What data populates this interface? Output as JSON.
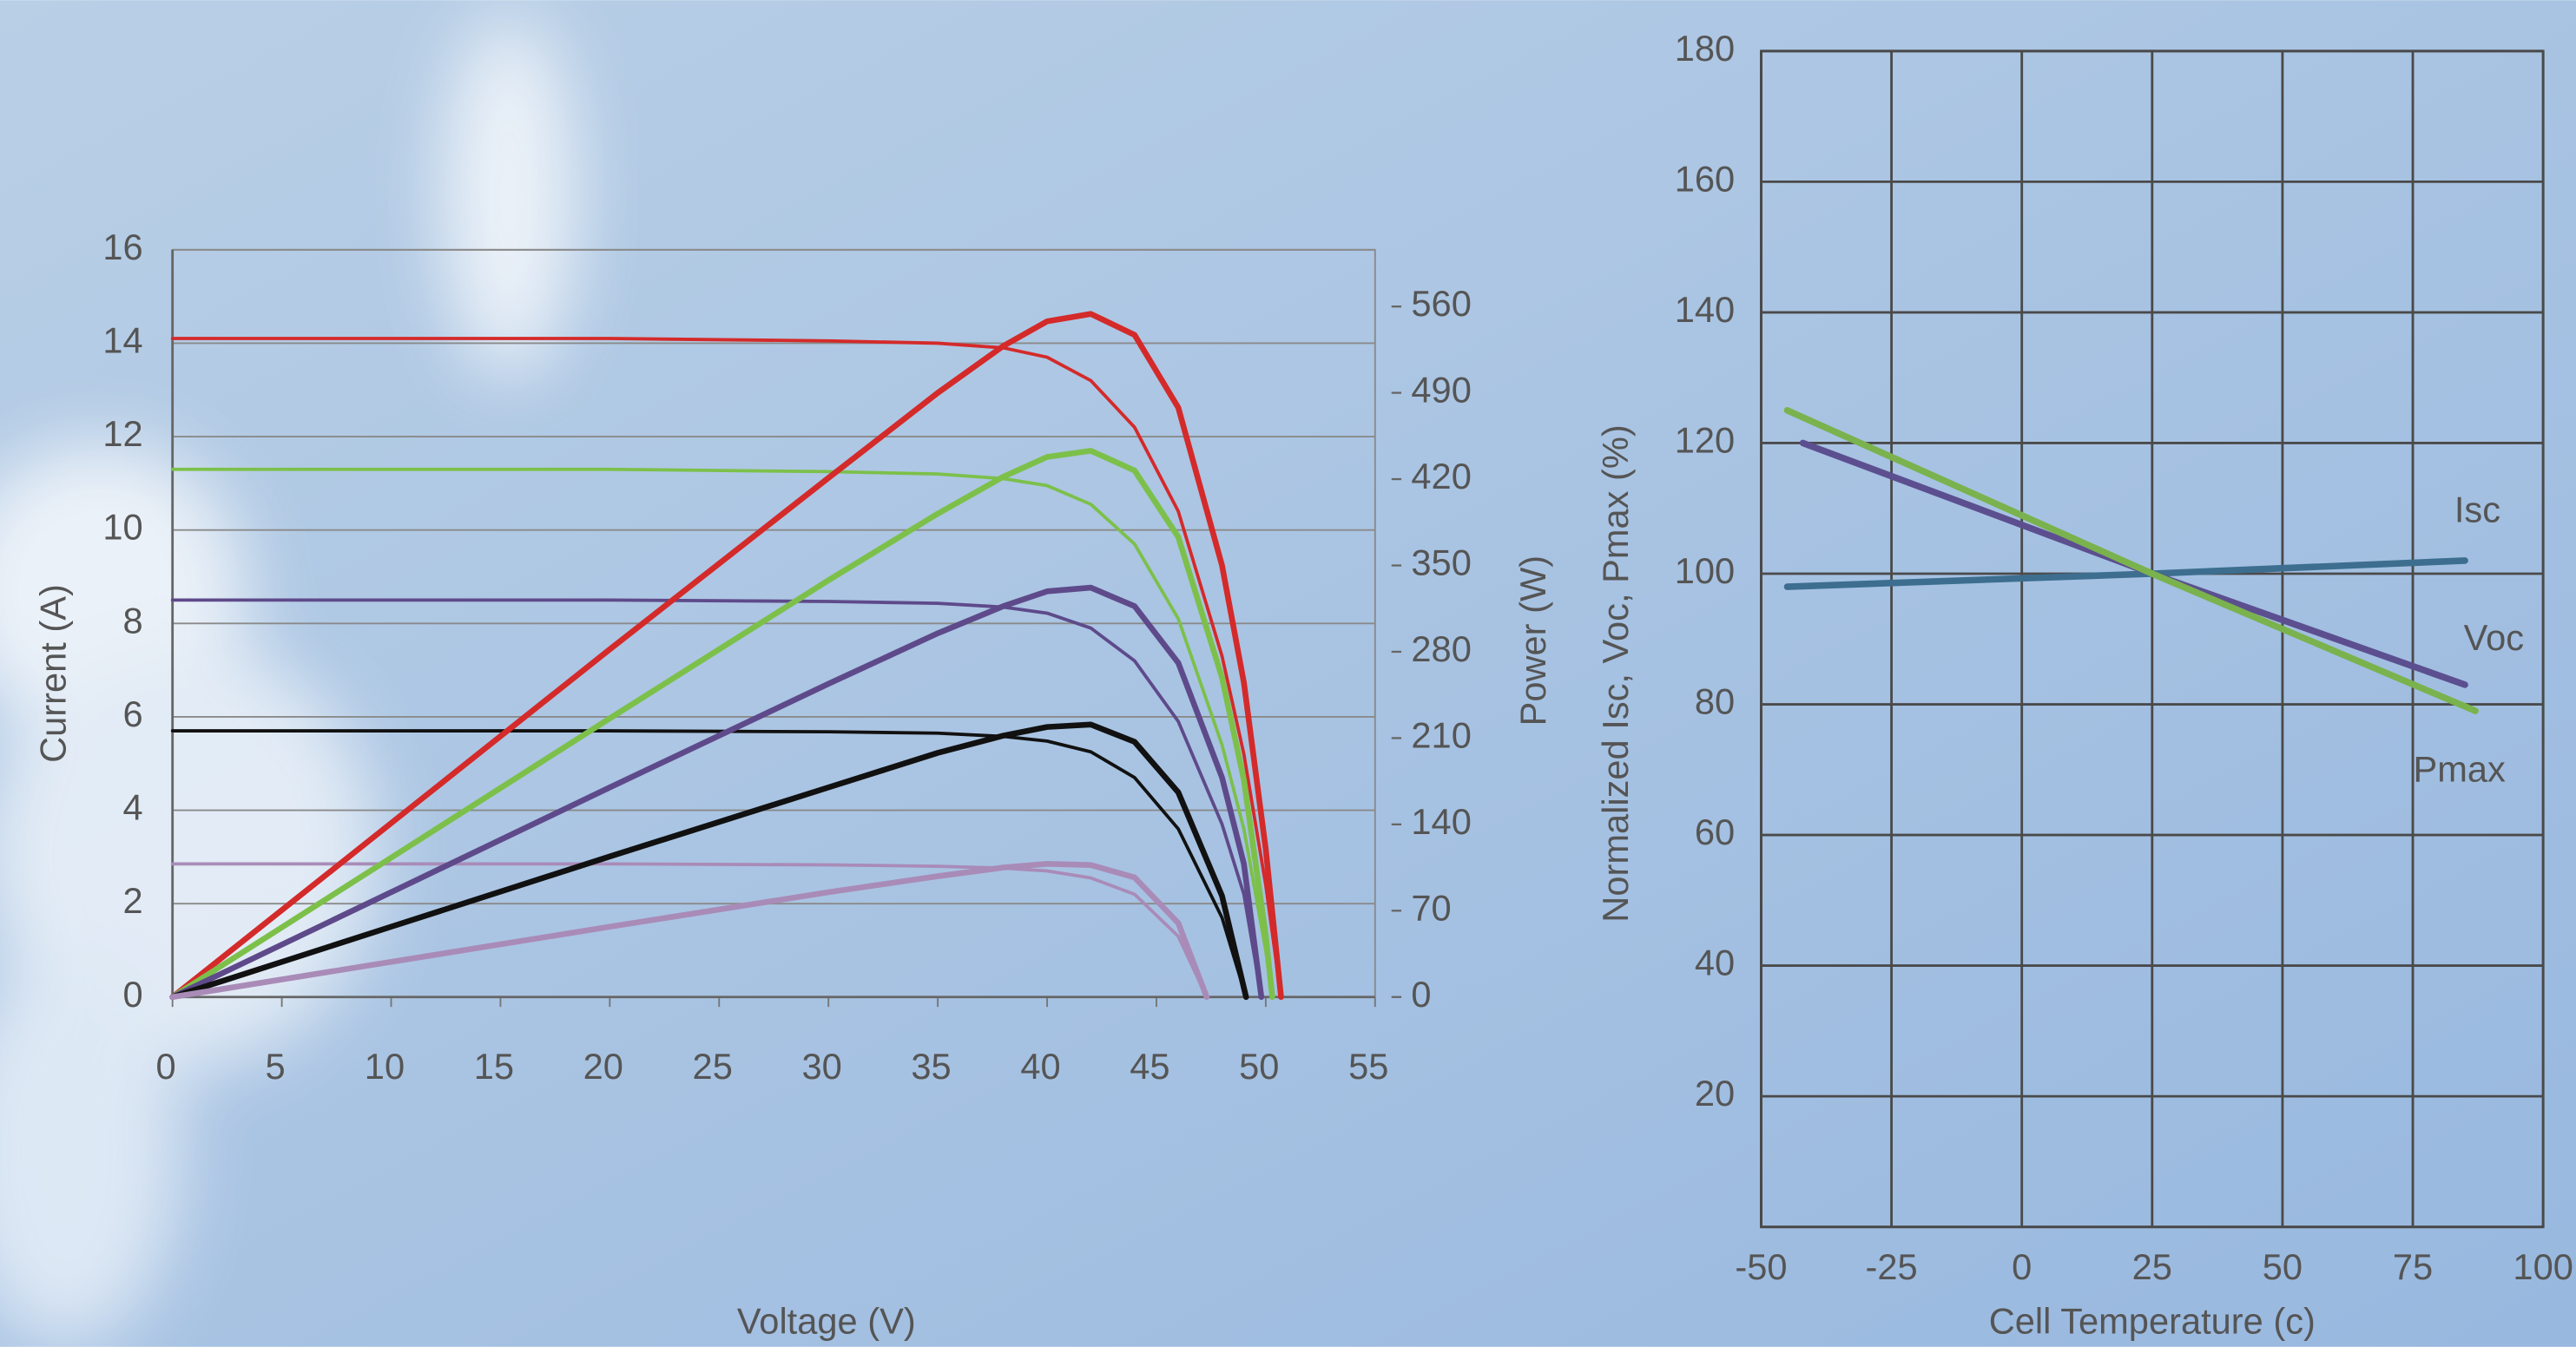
{
  "chart_data": [
    {
      "type": "line",
      "xlabel": "Voltage (V)",
      "ylabel": "Current (A)",
      "y2label": "Power (W)",
      "xlim": [
        0,
        55
      ],
      "xticks": [
        0,
        5,
        10,
        15,
        20,
        25,
        30,
        35,
        40,
        45,
        50,
        55
      ],
      "ylim": [
        0,
        16
      ],
      "yticks": [
        0,
        2,
        4,
        6,
        8,
        10,
        12,
        14,
        16
      ],
      "y2lim": [
        0,
        606
      ],
      "y2ticks": [
        0,
        70,
        140,
        210,
        280,
        350,
        420,
        490,
        560
      ],
      "grid": true,
      "series": [
        {
          "color": "#d42a2a",
          "x": [
            0,
            10,
            20,
            30,
            35,
            38,
            40,
            42,
            44,
            46,
            48,
            49,
            50,
            50.7
          ],
          "values": [
            14.1,
            14.1,
            14.1,
            14.05,
            14.0,
            13.9,
            13.7,
            13.2,
            12.2,
            10.4,
            7.3,
            5.2,
            2.4,
            0
          ]
        },
        {
          "color": "#7cc04a",
          "x": [
            0,
            10,
            20,
            30,
            35,
            38,
            40,
            42,
            44,
            46,
            48,
            49,
            50,
            50.3
          ],
          "values": [
            11.3,
            11.3,
            11.3,
            11.25,
            11.2,
            11.1,
            10.95,
            10.55,
            9.7,
            8.1,
            5.4,
            3.6,
            1.0,
            0
          ]
        },
        {
          "color": "#5e4a8a",
          "x": [
            0,
            10,
            20,
            30,
            35,
            38,
            40,
            42,
            44,
            46,
            48,
            49,
            49.8
          ],
          "values": [
            8.5,
            8.5,
            8.5,
            8.47,
            8.43,
            8.35,
            8.22,
            7.9,
            7.2,
            5.9,
            3.7,
            2.2,
            0
          ]
        },
        {
          "color": "#111111",
          "x": [
            0,
            10,
            20,
            30,
            35,
            38,
            40,
            42,
            44,
            46,
            48,
            49.1
          ],
          "values": [
            5.7,
            5.7,
            5.7,
            5.68,
            5.65,
            5.58,
            5.48,
            5.25,
            4.7,
            3.6,
            1.7,
            0
          ]
        },
        {
          "color": "#a98bb8",
          "x": [
            0,
            10,
            20,
            30,
            35,
            38,
            40,
            42,
            44,
            46,
            47.3
          ],
          "values": [
            2.85,
            2.85,
            2.85,
            2.83,
            2.8,
            2.76,
            2.7,
            2.55,
            2.2,
            1.3,
            0
          ]
        },
        {
          "color": "#d42a2a",
          "axis": "y2",
          "x": [
            0,
            10,
            20,
            30,
            35,
            38,
            40,
            42,
            44,
            46,
            48,
            49,
            50,
            50.7
          ],
          "values": [
            0,
            141,
            282,
            421,
            490,
            528,
            548,
            554,
            537,
            478,
            350,
            255,
            120,
            0
          ]
        },
        {
          "color": "#7cc04a",
          "axis": "y2",
          "x": [
            0,
            10,
            20,
            30,
            35,
            38,
            40,
            42,
            44,
            46,
            48,
            49,
            50,
            50.3
          ],
          "values": [
            0,
            113,
            226,
            338,
            392,
            422,
            438,
            443,
            427,
            373,
            259,
            176,
            50,
            0
          ]
        },
        {
          "color": "#5e4a8a",
          "axis": "y2",
          "x": [
            0,
            10,
            20,
            30,
            35,
            38,
            40,
            42,
            44,
            46,
            48,
            49,
            49.8
          ],
          "values": [
            0,
            85,
            170,
            254,
            295,
            317,
            329,
            332,
            317,
            271,
            178,
            108,
            0
          ]
        },
        {
          "color": "#111111",
          "axis": "y2",
          "x": [
            0,
            10,
            20,
            30,
            35,
            38,
            40,
            42,
            44,
            46,
            48,
            49.1
          ],
          "values": [
            0,
            57,
            114,
            170,
            198,
            212,
            219,
            221,
            207,
            166,
            82,
            0
          ]
        },
        {
          "color": "#a98bb8",
          "axis": "y2",
          "x": [
            0,
            10,
            20,
            30,
            35,
            38,
            40,
            42,
            44,
            46,
            47.3
          ],
          "values": [
            0,
            28.5,
            57,
            85,
            98,
            105,
            108,
            107,
            97,
            60,
            0
          ]
        }
      ]
    },
    {
      "type": "line",
      "xlabel": "Cell Temperature (c)",
      "ylabel": "Normalized Isc, Voc, Pmax (%)",
      "xlim": [
        -50,
        100
      ],
      "xticks": [
        -50,
        -25,
        0,
        25,
        50,
        75,
        100
      ],
      "ylim": [
        0,
        180
      ],
      "yticks": [
        20,
        40,
        60,
        80,
        100,
        120,
        140,
        160,
        180
      ],
      "grid": true,
      "series": [
        {
          "name": "Isc",
          "color": "#3d6e8f",
          "x": [
            -45,
            25,
            85
          ],
          "values": [
            98,
            100,
            102
          ]
        },
        {
          "name": "Voc",
          "color": "#5c4f8f",
          "x": [
            -42,
            25,
            85
          ],
          "values": [
            120,
            100,
            83
          ]
        },
        {
          "name": "Pmax",
          "color": "#7ab24e",
          "x": [
            -45,
            25,
            87
          ],
          "values": [
            125,
            100,
            79
          ]
        }
      ]
    }
  ]
}
